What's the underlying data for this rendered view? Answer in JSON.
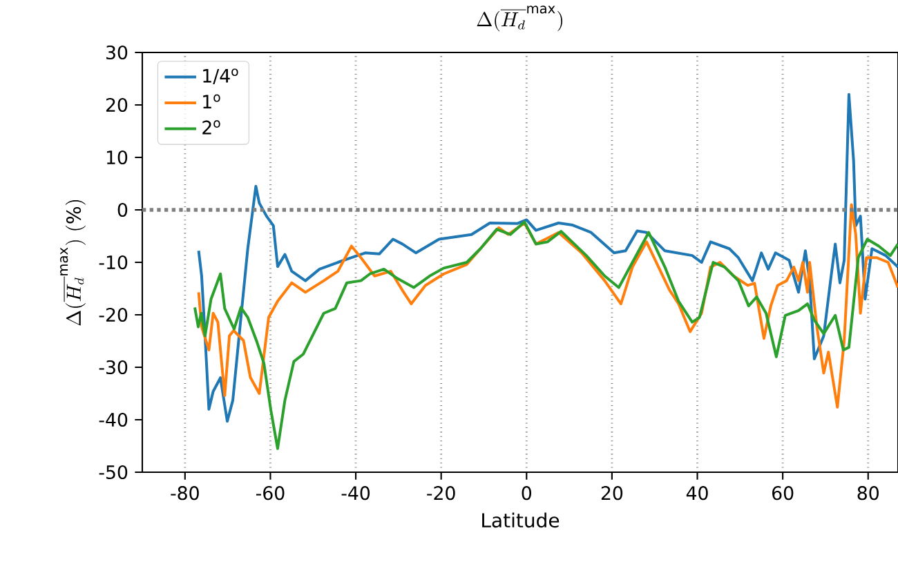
{
  "chart_data": {
    "type": "line",
    "title": "\\Delta(\\overline{H_d}^{\\mathrm{max}})",
    "xlabel": "Latitude",
    "ylabel": "\\Delta(\\overline{H_d}^{\\mathrm{max}})\\ (\\%)",
    "xlim": [
      -90,
      87
    ],
    "ylim": [
      -50,
      30
    ],
    "xticks": [
      -80,
      -60,
      -40,
      -20,
      0,
      20,
      40,
      60,
      80
    ],
    "yticks": [
      -50,
      -40,
      -30,
      -20,
      -10,
      0,
      10,
      20,
      30
    ],
    "grid": "x",
    "legend": "top left",
    "line_style": "solid",
    "marker": "none",
    "ref_lines": [
      {
        "axis": "y",
        "value": 0,
        "color": "#808080",
        "line_style": "dotted"
      }
    ],
    "series": [
      {
        "name": "1/4$^{o}$",
        "color": "#1f77b4",
        "x": [
          -76.8,
          -76.1,
          -75.3,
          -74.4,
          -73.4,
          -71.7,
          -70.1,
          -68.8,
          -66.9,
          -65.3,
          -63.4,
          -62.6,
          -60.9,
          -59.3,
          -58.3,
          -56.6,
          -55.0,
          -51.8,
          -48.5,
          -44.2,
          -41.0,
          -37.8,
          -34.5,
          -31.3,
          -29.1,
          -25.9,
          -20.5,
          -12.9,
          -8.6,
          -2.2,
          0,
          2.2,
          7.5,
          10.8,
          15.1,
          20.5,
          23.2,
          25.9,
          28.1,
          32.4,
          38.8,
          41.0,
          43.1,
          47.5,
          49.6,
          52.9,
          55.0,
          56.6,
          58.3,
          61.5,
          63.7,
          65.3,
          66.3,
          67.4,
          69.6,
          71.2,
          72.3,
          73.4,
          74.4,
          75.5,
          76.6,
          77.1,
          78.2,
          79.3,
          80.9,
          84.1,
          87.0
        ],
        "values": [
          -7.8,
          -12.6,
          -24.0,
          -38.0,
          -34.6,
          -32.0,
          -40.3,
          -36.3,
          -20.5,
          -7.4,
          4.5,
          1.3,
          -1.2,
          -3.0,
          -10.8,
          -8.5,
          -11.7,
          -13.5,
          -11.3,
          -10.0,
          -9.1,
          -8.2,
          -8.4,
          -5.6,
          -6.5,
          -8.2,
          -5.6,
          -4.7,
          -2.5,
          -2.6,
          -1.9,
          -3.9,
          -2.5,
          -2.9,
          -4.3,
          -8.2,
          -7.8,
          -4.0,
          -4.3,
          -7.8,
          -8.7,
          -10.0,
          -6.1,
          -7.4,
          -9.1,
          -13.5,
          -8.2,
          -11.3,
          -8.2,
          -9.6,
          -15.7,
          -7.8,
          -13.5,
          -28.4,
          -24.0,
          -13.5,
          -6.5,
          -13.9,
          -9.6,
          22.0,
          9.3,
          -3.0,
          -1.2,
          -17.0,
          -7.4,
          -8.7,
          -10.9
        ]
      },
      {
        "name": "1$^{o}$",
        "color": "#ff7f0e",
        "x": [
          -76.8,
          -76.1,
          -74.4,
          -73.4,
          -72.3,
          -70.7,
          -69.6,
          -68.6,
          -66.3,
          -64.7,
          -62.6,
          -60.4,
          -58.3,
          -55.0,
          -51.8,
          -47.5,
          -44.2,
          -41.0,
          -38.8,
          -35.6,
          -31.8,
          -29.1,
          -27.0,
          -23.7,
          -19.4,
          -14.0,
          -10.8,
          -6.5,
          -4.3,
          -0.5,
          2.2,
          4.9,
          7.5,
          12.9,
          18.3,
          22.1,
          24.8,
          28.1,
          33.5,
          35.6,
          38.3,
          41.0,
          43.1,
          45.3,
          48.5,
          51.8,
          53.4,
          55.6,
          57.2,
          58.8,
          60.9,
          62.6,
          63.7,
          64.7,
          65.8,
          66.3,
          68.0,
          69.6,
          70.7,
          72.8,
          74.4,
          76.1,
          77.1,
          78.2,
          79.6,
          82.0,
          84.7,
          87.0
        ],
        "values": [
          -15.7,
          -22.3,
          -26.7,
          -19.7,
          -21.4,
          -35.4,
          -24.0,
          -23.0,
          -24.9,
          -31.9,
          -35.0,
          -20.5,
          -17.4,
          -13.9,
          -15.7,
          -13.5,
          -11.7,
          -6.9,
          -9.1,
          -12.6,
          -11.7,
          -15.3,
          -17.9,
          -14.4,
          -12.2,
          -10.4,
          -7.4,
          -3.4,
          -4.7,
          -2.5,
          -6.5,
          -5.4,
          -4.3,
          -8.2,
          -13.5,
          -17.9,
          -10.9,
          -6.1,
          -15.3,
          -17.9,
          -23.2,
          -19.7,
          -10.9,
          -10.0,
          -12.6,
          -14.4,
          -14.0,
          -24.5,
          -18.3,
          -14.4,
          -13.5,
          -10.9,
          -13.5,
          -10.0,
          -15.7,
          -10.0,
          -22.3,
          -31.1,
          -27.1,
          -37.6,
          -24.9,
          1.0,
          -4.7,
          -19.7,
          -9.1,
          -9.1,
          -10.0,
          -14.8
        ]
      },
      {
        "name": "2$^{o}$",
        "color": "#2ca02c",
        "x": [
          -77.7,
          -76.9,
          -76.2,
          -75.3,
          -73.9,
          -71.7,
          -70.7,
          -68.5,
          -66.9,
          -65.3,
          -63.1,
          -61.5,
          -59.9,
          -58.3,
          -56.6,
          -54.5,
          -52.3,
          -47.5,
          -44.8,
          -42.1,
          -38.8,
          -36.7,
          -33.4,
          -30.2,
          -26.4,
          -22.7,
          -19.4,
          -14.0,
          -10.8,
          -7.0,
          -3.8,
          -0.5,
          2.2,
          4.9,
          8.1,
          14.0,
          18.3,
          21.6,
          24.8,
          28.6,
          32.4,
          35.6,
          38.8,
          40.5,
          43.7,
          46.4,
          49.6,
          52.0,
          53.9,
          56.1,
          58.5,
          60.6,
          63.7,
          65.8,
          67.4,
          69.6,
          72.3,
          74.2,
          75.5,
          77.7,
          79.8,
          82.5,
          85.2,
          87.0
        ],
        "values": [
          -18.6,
          -22.3,
          -19.7,
          -24.0,
          -17.0,
          -12.2,
          -18.8,
          -22.7,
          -18.6,
          -20.5,
          -25.3,
          -29.3,
          -38.1,
          -45.5,
          -36.3,
          -28.9,
          -27.5,
          -19.7,
          -18.8,
          -13.9,
          -13.5,
          -12.2,
          -11.3,
          -13.1,
          -14.8,
          -12.6,
          -11.1,
          -10.0,
          -7.4,
          -3.7,
          -4.7,
          -2.3,
          -6.5,
          -6.1,
          -4.1,
          -8.7,
          -12.6,
          -14.8,
          -10.0,
          -4.3,
          -10.9,
          -17.4,
          -21.4,
          -20.5,
          -10.0,
          -10.9,
          -13.5,
          -18.3,
          -16.6,
          -19.7,
          -28.0,
          -20.1,
          -19.2,
          -17.9,
          -21.0,
          -23.6,
          -20.1,
          -26.7,
          -26.2,
          -9.1,
          -5.6,
          -6.9,
          -8.7,
          -6.5
        ]
      }
    ]
  }
}
